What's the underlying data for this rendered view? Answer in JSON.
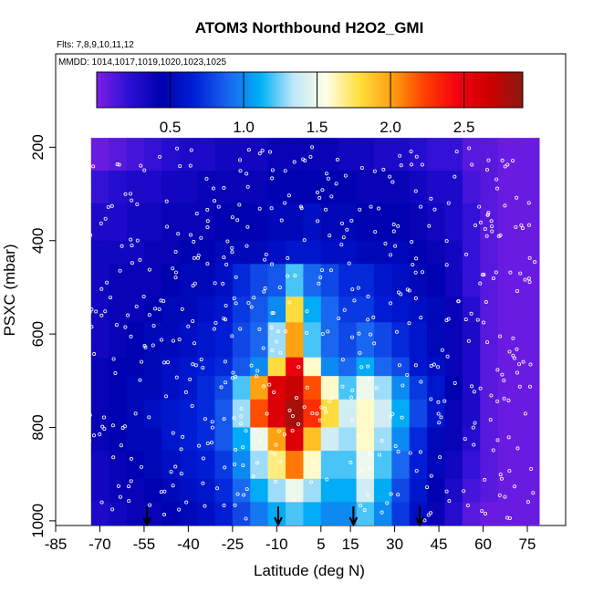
{
  "chart_data": {
    "type": "heatmap",
    "title": "ATOM3 Northbound H2O2_GMI",
    "flights_label": "Flts: 7,8,9,10,11,12",
    "dates_label": "MMDD: 1014,1017,1019,1020,1023,1025",
    "xlabel": "Latitude (deg N)",
    "ylabel": "PSXC (mbar)",
    "xlim": [
      -85,
      88
    ],
    "ylim": [
      1010,
      0
    ],
    "x_ticks": [
      "-85",
      "-70",
      "-55",
      "-40",
      "-25",
      "-10",
      "5",
      "15",
      "30",
      "45",
      "60",
      "75"
    ],
    "y_ticks": [
      "200",
      "400",
      "600",
      "800",
      "1000"
    ],
    "colorbar": {
      "min": 0,
      "max": 2.9,
      "ticks": [
        "0.5",
        "1.0",
        "1.5",
        "2.0",
        "2.5"
      ],
      "colors": [
        "#7d1fe6",
        "#2a0fd4",
        "#0000b0",
        "#0020d8",
        "#1a64f0",
        "#00b0f5",
        "#bfe6fa",
        "#ffffe6",
        "#ffe040",
        "#ffa010",
        "#ff4000",
        "#f40010",
        "#cc0000",
        "#8a1a12"
      ]
    },
    "arrow_latitudes": [
      -54,
      -9.5,
      16,
      38.5
    ],
    "column_edges": [
      -73,
      -67,
      -61,
      -55,
      -49,
      -43,
      -37,
      -31,
      -25,
      -19,
      -13,
      -7,
      -1,
      5,
      11,
      17,
      23,
      29,
      35,
      41,
      47,
      53,
      59,
      65,
      71,
      79
    ],
    "level_edges": [
      180,
      250,
      320,
      400,
      450,
      520,
      575,
      650,
      690,
      740,
      800,
      850,
      910,
      960,
      1010
    ],
    "values": [
      [
        0.05,
        0.1,
        0.15,
        0.2,
        0.25,
        0.3,
        0.3,
        0.35,
        0.35,
        0.35,
        0.4,
        0.4,
        0.4,
        0.4,
        0.35,
        0.35,
        0.3,
        0.3,
        0.25,
        0.2,
        0.2,
        0.1,
        0.1,
        0.05,
        0.05
      ],
      [
        0.2,
        0.25,
        0.3,
        0.3,
        0.35,
        0.35,
        0.4,
        0.4,
        0.4,
        0.4,
        0.45,
        0.45,
        0.45,
        0.45,
        0.45,
        0.4,
        0.4,
        0.4,
        0.35,
        0.3,
        0.3,
        0.15,
        0.1,
        0.05,
        0.05
      ],
      [
        0.3,
        0.3,
        0.35,
        0.35,
        0.4,
        0.4,
        0.4,
        0.45,
        0.45,
        0.45,
        0.5,
        0.5,
        0.55,
        0.5,
        0.5,
        0.45,
        0.45,
        0.45,
        0.4,
        0.35,
        0.3,
        0.2,
        0.1,
        0.05,
        0.05
      ],
      [
        0.35,
        0.35,
        0.35,
        0.4,
        0.4,
        0.45,
        0.45,
        0.5,
        0.5,
        0.5,
        0.55,
        0.6,
        0.6,
        0.55,
        0.55,
        0.5,
        0.5,
        0.5,
        0.45,
        0.4,
        0.35,
        0.2,
        0.1,
        0.05,
        0.05
      ],
      [
        0.35,
        0.4,
        0.4,
        0.4,
        0.45,
        0.5,
        0.5,
        0.55,
        0.7,
        0.8,
        0.85,
        1.2,
        0.9,
        0.8,
        0.7,
        0.7,
        0.6,
        0.55,
        0.5,
        0.45,
        0.35,
        0.2,
        0.1,
        0.05,
        0.05
      ],
      [
        0.35,
        0.4,
        0.4,
        0.45,
        0.5,
        0.5,
        0.55,
        0.6,
        0.75,
        0.85,
        1.0,
        1.8,
        1.1,
        0.9,
        0.75,
        0.75,
        0.65,
        0.6,
        0.55,
        0.5,
        0.4,
        0.25,
        0.1,
        0.05,
        0.05
      ],
      [
        0.35,
        0.4,
        0.45,
        0.5,
        0.5,
        0.55,
        0.6,
        0.65,
        0.8,
        0.9,
        1.3,
        2.0,
        1.2,
        0.9,
        0.8,
        0.9,
        0.8,
        0.7,
        0.6,
        0.5,
        0.4,
        0.3,
        0.1,
        0.05,
        0.05
      ],
      [
        0.4,
        0.45,
        0.45,
        0.5,
        0.55,
        0.6,
        0.65,
        0.7,
        0.85,
        1.0,
        1.8,
        2.5,
        1.6,
        1.0,
        0.9,
        1.1,
        0.9,
        0.8,
        0.6,
        0.55,
        0.4,
        0.3,
        0.1,
        0.05,
        0.05
      ],
      [
        0.4,
        0.45,
        0.5,
        0.5,
        0.55,
        0.6,
        0.7,
        0.8,
        1.2,
        2.0,
        2.6,
        2.7,
        2.2,
        1.6,
        1.2,
        1.5,
        1.3,
        1.0,
        0.75,
        0.6,
        0.45,
        0.3,
        0.1,
        0.05,
        0.05
      ],
      [
        0.4,
        0.45,
        0.5,
        0.55,
        0.6,
        0.65,
        0.7,
        0.85,
        1.3,
        2.2,
        2.6,
        2.8,
        2.3,
        1.8,
        1.4,
        1.6,
        1.4,
        1.1,
        0.8,
        0.6,
        0.4,
        0.3,
        0.1,
        0.05,
        0.05
      ],
      [
        0.4,
        0.45,
        0.5,
        0.5,
        0.6,
        0.65,
        0.7,
        0.85,
        1.1,
        1.5,
        2.0,
        2.6,
        1.9,
        1.4,
        1.3,
        1.6,
        1.3,
        1.0,
        0.7,
        0.5,
        0.4,
        0.25,
        0.1,
        0.05,
        0.05
      ],
      [
        0.35,
        0.4,
        0.45,
        0.5,
        0.55,
        0.6,
        0.65,
        0.75,
        1.0,
        1.3,
        1.7,
        2.1,
        1.6,
        1.2,
        1.2,
        1.5,
        1.2,
        0.9,
        0.65,
        0.5,
        0.35,
        0.2,
        0.1,
        0.05,
        0.05
      ],
      [
        0.35,
        0.4,
        0.4,
        0.45,
        0.5,
        0.55,
        0.6,
        0.7,
        0.9,
        1.1,
        1.3,
        1.5,
        1.3,
        1.1,
        1.1,
        1.4,
        1.1,
        0.8,
        0.6,
        0.45,
        0.3,
        0.15,
        0.1,
        0.05,
        0.05
      ],
      [
        0.3,
        0.35,
        0.4,
        0.4,
        0.45,
        0.5,
        0.55,
        0.65,
        0.8,
        0.95,
        1.1,
        1.2,
        1.1,
        1.0,
        1.0,
        1.2,
        1.0,
        0.75,
        0.55,
        0.4,
        0.25,
        0.1,
        0.05,
        0.05,
        0.05
      ]
    ]
  }
}
